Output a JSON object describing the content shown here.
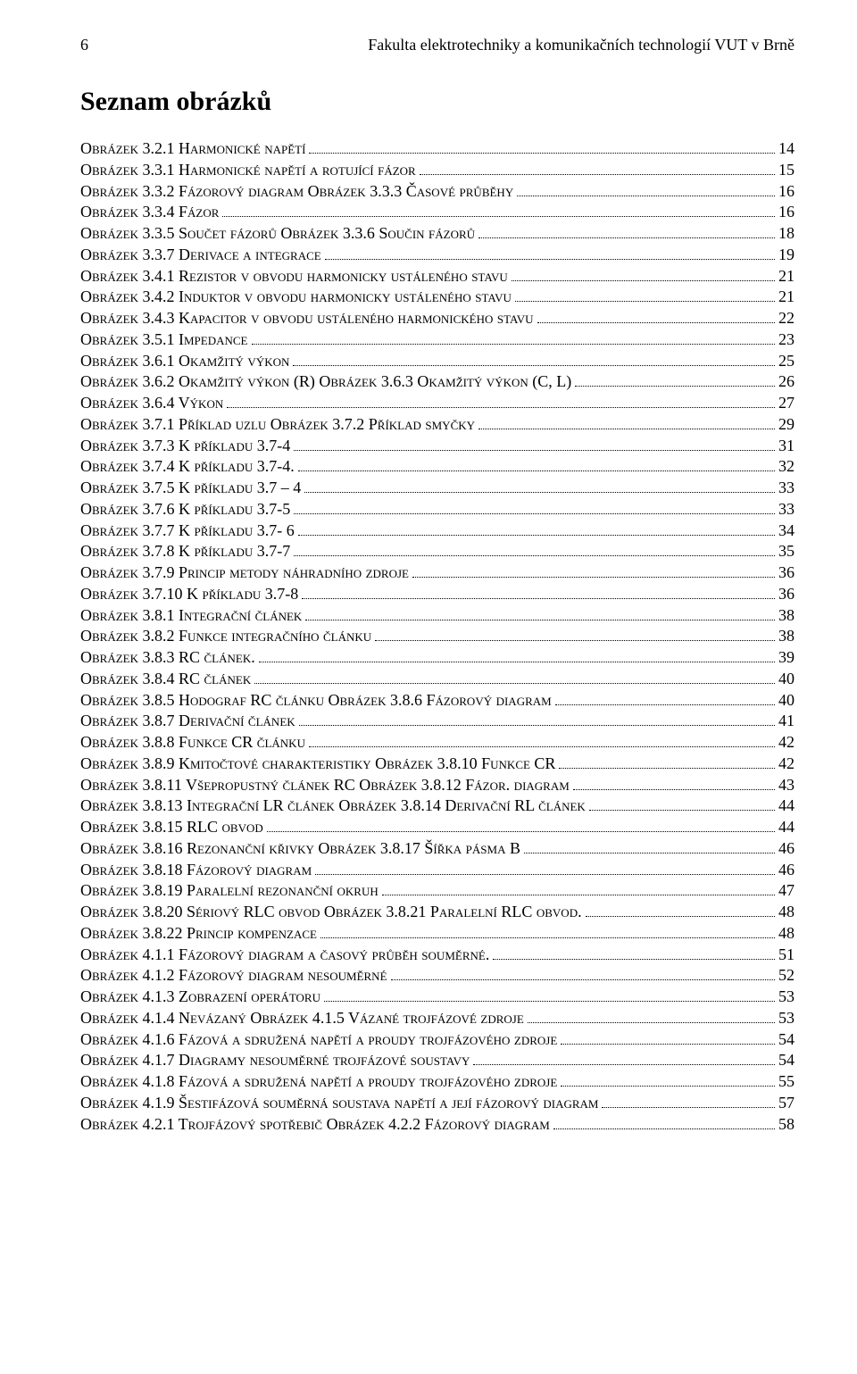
{
  "header": {
    "page_number": "6",
    "running_title": "Fakulta elektrotechniky a komunikačních technologií VUT v Brně"
  },
  "section_title": "Seznam obrázků",
  "entries": [
    {
      "label_parts": [
        "Obrázek ",
        "3.2.1",
        "  Harmonické napětí"
      ],
      "page": "14"
    },
    {
      "label_parts": [
        "Obrázek ",
        "3.3.1",
        "  Harmonické napětí a rotující fázor"
      ],
      "page": "15"
    },
    {
      "label_parts": [
        "Obrázek ",
        "3.3.2",
        "  Fázorový diagram       Obrázek ",
        "3.3.3",
        "  Časové průběhy"
      ],
      "page": "16"
    },
    {
      "label_parts": [
        "Obrázek ",
        "3.3.4",
        "  Fázor"
      ],
      "page": "16"
    },
    {
      "label_parts": [
        "Obrázek ",
        "3.3.5",
        "   Součet fázorů          Obrázek ",
        "3.3.6",
        "  Součin fázorů"
      ],
      "page": "18"
    },
    {
      "label_parts": [
        "Obrázek ",
        "3.3.7",
        "  Derivace a integrace"
      ],
      "page": "19"
    },
    {
      "label_parts": [
        "Obrázek ",
        "3.4.1",
        "  Rezistor v obvodu harmonicky ustáleného stavu"
      ],
      "page": "21"
    },
    {
      "label_parts": [
        "Obrázek ",
        "3.4.2",
        "  Induktor v obvodu harmonicky ustáleného stavu"
      ],
      "page": "21"
    },
    {
      "label_parts": [
        "Obrázek ",
        "3.4.3",
        "  Kapacitor v obvodu ustáleného harmonického stavu"
      ],
      "page": "22"
    },
    {
      "label_parts": [
        "Obrázek ",
        "3.5.1",
        "  Impedance"
      ],
      "page": "23"
    },
    {
      "label_parts": [
        "Obrázek ",
        "3.6.1",
        "  Okamžitý výkon"
      ],
      "page": "25"
    },
    {
      "label_parts": [
        "Obrázek ",
        "3.6.2",
        "  Okamžitý výkon  (R)      Obrázek ",
        "3.6.3",
        "  Okamžitý výkon (C, L)"
      ],
      "page": "26"
    },
    {
      "label_parts": [
        "Obrázek ",
        "3.6.4",
        "  Výkon"
      ],
      "page": "27"
    },
    {
      "label_parts": [
        "Obrázek ",
        "3.7.1",
        "  Příklad uzlu    Obrázek ",
        "3.7.2",
        "  Příklad smyčky"
      ],
      "page": "29"
    },
    {
      "label_parts": [
        "Obrázek ",
        "3.7.3",
        "  K příkladu  ",
        "3.7-4"
      ],
      "page": "31"
    },
    {
      "label_parts": [
        "Obrázek ",
        "3.7.4",
        "  K příkladu ",
        "3.7-4",
        "."
      ],
      "page": "32"
    },
    {
      "label_parts": [
        "Obrázek ",
        "3.7.5",
        "  K příkladu ",
        "3.7 – 4"
      ],
      "page": "33"
    },
    {
      "label_parts": [
        "Obrázek ",
        "3.7.6",
        "  K příkladu ",
        "3.7-5"
      ],
      "page": "33"
    },
    {
      "label_parts": [
        "Obrázek ",
        "3.7.7",
        "  K příkladu ",
        "3.7- 6"
      ],
      "page": "34"
    },
    {
      "label_parts": [
        "Obrázek ",
        "3.7.8",
        "  K  příkladu ",
        "3.7-7"
      ],
      "page": "35"
    },
    {
      "label_parts": [
        "Obrázek ",
        "3.7.9",
        "  Princip metody náhradního zdroje"
      ],
      "page": "36"
    },
    {
      "label_parts": [
        "Obrázek ",
        "3.7.10",
        "   K příkladu ",
        "3.7-8"
      ],
      "page": "36"
    },
    {
      "label_parts": [
        "Obrázek ",
        "3.8.1",
        "  Integrační  článek"
      ],
      "page": "38"
    },
    {
      "label_parts": [
        "Obrázek ",
        "3.8.2",
        "  Funkce integračního článku"
      ],
      "page": "38"
    },
    {
      "label_parts": [
        "Obrázek ",
        "3.8.3",
        "  RC článek."
      ],
      "page": "39"
    },
    {
      "label_parts": [
        "Obrázek ",
        "3.8.4",
        "  RC článek"
      ],
      "page": "40"
    },
    {
      "label_parts": [
        "Obrázek ",
        "3.8.5",
        "  Hodograf  RC článku    Obrázek ",
        "3.8.6",
        "  Fázorový diagram"
      ],
      "page": "40"
    },
    {
      "label_parts": [
        "Obrázek ",
        "3.8.7",
        "  Derivační článek"
      ],
      "page": "41"
    },
    {
      "label_parts": [
        "Obrázek ",
        "3.8.8",
        "  Funkce  CR článku"
      ],
      "page": "42"
    },
    {
      "label_parts": [
        "Obrázek ",
        "3.8.9",
        "  Kmitočtové charakteristiky      Obrázek ",
        "3.8.10",
        "   Funkce CR"
      ],
      "page": "42"
    },
    {
      "label_parts": [
        "Obrázek ",
        "3.8.11",
        "   Všepropustný článek RC        Obrázek ",
        "3.8.12",
        " Fázor. diagram"
      ],
      "page": "43"
    },
    {
      "label_parts": [
        "Obrázek ",
        "3.8.13",
        "   Integrační LR článek   Obrázek ",
        "3.8.14",
        "  Derivační RL článek"
      ],
      "page": "44"
    },
    {
      "label_parts": [
        "Obrázek ",
        "3.8.15",
        "   RLC  obvod"
      ],
      "page": "44"
    },
    {
      "label_parts": [
        "Obrázek ",
        "3.8.16",
        "   Rezonanční křivky    Obrázek ",
        "3.8.17",
        " Šířka  pásma  B"
      ],
      "page": "46"
    },
    {
      "label_parts": [
        "Obrázek ",
        "3.8.18",
        "   Fázorový  diagram"
      ],
      "page": "46"
    },
    {
      "label_parts": [
        "Obrázek ",
        "3.8.19",
        "   Paralelní rezonanční okruh"
      ],
      "page": "47"
    },
    {
      "label_parts": [
        "Obrázek ",
        "3.8.20",
        "   Sériový RLC obvod    Obrázek ",
        "3.8.21",
        "  Paralelní RLC obvod."
      ],
      "page": "48"
    },
    {
      "label_parts": [
        "Obrázek ",
        "3.8.22",
        "   Princip kompenzace"
      ],
      "page": "48"
    },
    {
      "label_parts": [
        "Obrázek ",
        "4.1.1",
        "   Fázorový diagram a  časový průběh souměrné."
      ],
      "page": "51"
    },
    {
      "label_parts": [
        "Obrázek ",
        "4.1.2",
        "  Fázorový diagram nesouměrné"
      ],
      "page": "52"
    },
    {
      "label_parts": [
        "Obrázek ",
        "4.1.3",
        "  Zobrazení operátoru"
      ],
      "page": "53"
    },
    {
      "label_parts": [
        "Obrázek ",
        "4.1.4",
        "  Nevázaný      Obrázek ",
        "4.1.5",
        " Vázané trojfázové zdroje"
      ],
      "page": "53"
    },
    {
      "label_parts": [
        "Obrázek ",
        "4.1.6",
        "  Fázová a sdružená napětí a proudy trojfázového zdroje"
      ],
      "page": "54"
    },
    {
      "label_parts": [
        "Obrázek ",
        "4.1.7",
        "  Diagramy nesouměrné trojfázové soustavy"
      ],
      "page": "54"
    },
    {
      "label_parts": [
        "Obrázek ",
        "4.1.8",
        "  Fázová a sdružená napětí a proudy trojfázového zdroje"
      ],
      "page": "55"
    },
    {
      "label_parts": [
        "Obrázek ",
        "4.1.9",
        "   Šestifázová souměrná soustava napětí a její fázorový diagram"
      ],
      "page": "57"
    },
    {
      "label_parts": [
        "Obrázek ",
        "4.2.1",
        " Trojfázový spotřebič   Obrázek ",
        "4.2.2",
        "  Fázorový diagram"
      ],
      "page": "58"
    }
  ]
}
